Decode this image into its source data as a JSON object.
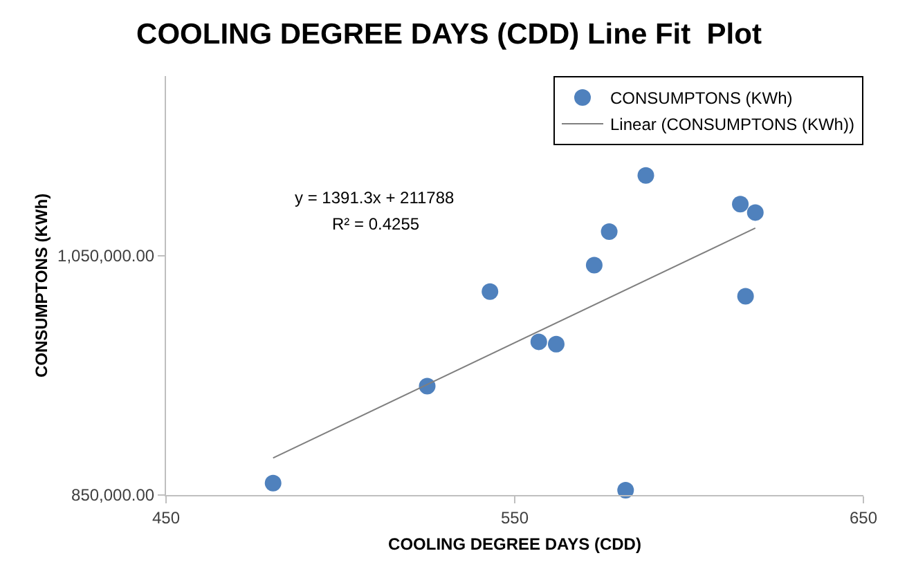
{
  "chart_data": {
    "type": "scatter",
    "title": "COOLING DEGREE DAYS (CDD) Line Fit  Plot",
    "xlabel": "COOLING DEGREE DAYS (CDD)",
    "ylabel": "CONSUMPTONS (KWh)",
    "xlim": [
      450,
      650
    ],
    "xticks": [
      450,
      550,
      650
    ],
    "ylim": [
      850000,
      1200000
    ],
    "yticks": [
      {
        "value": 850000,
        "label": "850,000.00"
      },
      {
        "value": 1050000,
        "label": "1,050,000.00"
      }
    ],
    "legend": "top right",
    "annotations": [
      "y = 1391.3x + 211788",
      "R² = 0.4255"
    ],
    "series": [
      {
        "name": "CONSUMPTONS (KWh)",
        "marker": "circle",
        "color": "#4f81bd",
        "x": [
          480.7,
          524.9,
          542.9,
          556.9,
          561.9,
          572.8,
          577.1,
          581.8,
          587.6,
          614.7,
          616.2,
          619.0
        ],
        "values": [
          860000,
          941000,
          1020000,
          978000,
          976000,
          1042000,
          1070000,
          854000,
          1117000,
          1093000,
          1016000,
          1086000
        ]
      },
      {
        "name": "Linear (CONSUMPTONS (KWh))",
        "type": "line",
        "marker": "none",
        "line_style": "solid",
        "color": "#7f7f7f",
        "x": [
          480.7,
          619.0
        ],
        "values": [
          881000,
          1073000
        ]
      }
    ]
  }
}
